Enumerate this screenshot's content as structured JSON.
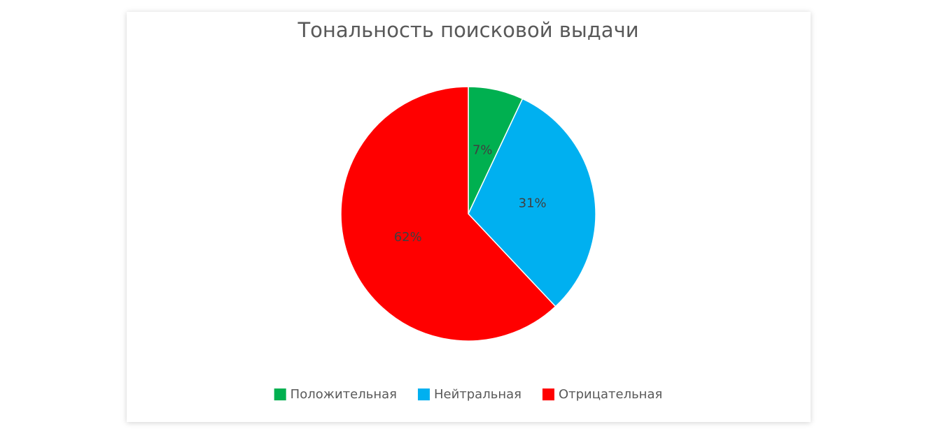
{
  "chart_data": {
    "type": "pie",
    "title": "Тональность поисковой выдачи",
    "categories": [
      "Положительная",
      "Нейтральная",
      "Отрицательная"
    ],
    "values": [
      7,
      31,
      62
    ],
    "value_labels": [
      "7%",
      "31%",
      "62%"
    ],
    "colors": [
      "#00b050",
      "#00b0f0",
      "#ff0000"
    ],
    "legend": "bottom"
  }
}
